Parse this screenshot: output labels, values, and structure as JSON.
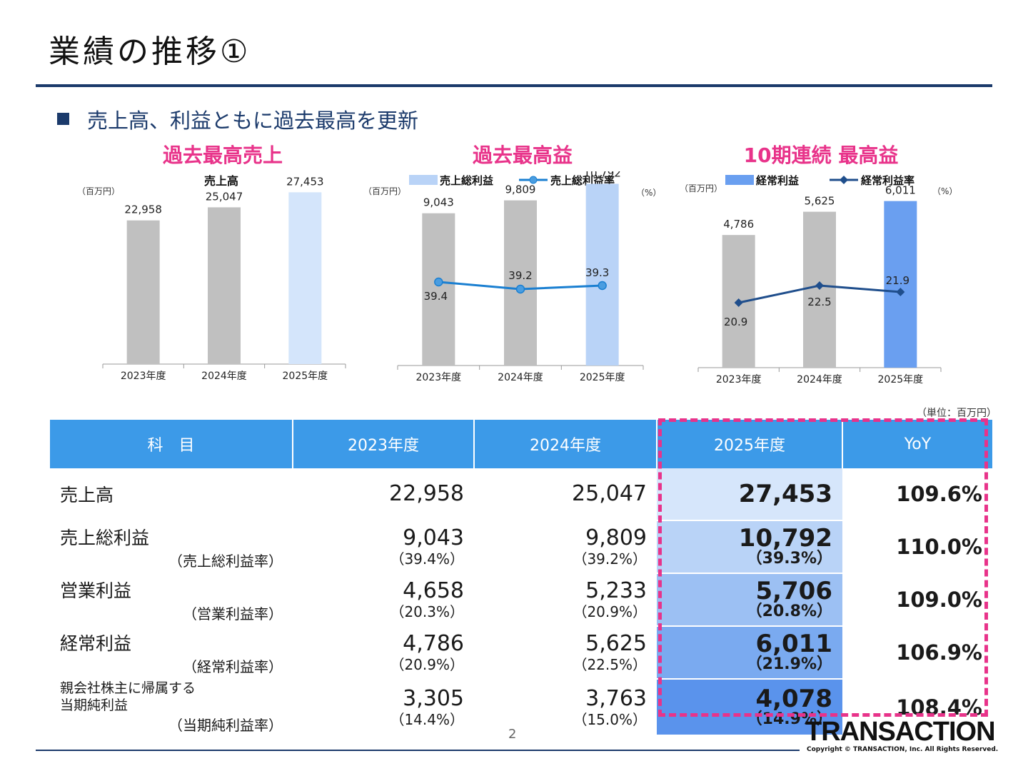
{
  "page": {
    "title": "業績の推移①",
    "subtitle": "売上高、利益ともに過去最高を更新",
    "page_number": "2",
    "logo_text": "TRANSACTION",
    "copyright": "Copyright © TRANSACTION, Inc. All Rights Reserved.",
    "table_unit": "（単位：百万円）"
  },
  "headlines": [
    "過去最高売上",
    "過去最高益",
    "10期連続 最高益"
  ],
  "colors": {
    "navy": "#1b3a6b",
    "pink": "#e8338a",
    "header_blue": "#3c9ae8",
    "gray_bar": "#c0c0c0"
  },
  "chart_data": [
    {
      "type": "bar",
      "title": "売上高",
      "unit_left": "（百万円）",
      "categories": [
        "2023年度",
        "2024年度",
        "2025年度"
      ],
      "series": [
        {
          "values": [
            22958,
            25047,
            27453
          ]
        }
      ],
      "value_labels": [
        "22,958",
        "25,047",
        "27,453"
      ],
      "bar_colors": [
        "#c0c0c0",
        "#c0c0c0",
        "#d4e5fb"
      ],
      "ylim": [
        0,
        30000
      ]
    },
    {
      "type": "bar",
      "unit_left": "（百万円）",
      "unit_right": "（%）",
      "categories": [
        "2023年度",
        "2024年度",
        "2025年度"
      ],
      "series": [
        {
          "name": "売上総利益",
          "values": [
            9043,
            9809,
            10792
          ],
          "labels": [
            "9,043",
            "9,809",
            "10,792"
          ]
        },
        {
          "name": "売上総利益率",
          "type": "line",
          "values": [
            39.4,
            39.2,
            39.3
          ],
          "labels": [
            "39.4",
            "39.2",
            "39.3"
          ]
        }
      ],
      "bar_colors": [
        "#c0c0c0",
        "#c0c0c0",
        "#b9d3f7"
      ],
      "legend_colors": [
        "#b9d3f7",
        "#1a7fd1"
      ],
      "ylim": [
        0,
        12000
      ]
    },
    {
      "type": "bar",
      "unit_left": "（百万円）",
      "unit_right": "（%）",
      "categories": [
        "2023年度",
        "2024年度",
        "2025年度"
      ],
      "series": [
        {
          "name": "経常利益",
          "values": [
            4786,
            5625,
            6011
          ],
          "labels": [
            "4,786",
            "5,625",
            "6,011"
          ]
        },
        {
          "name": "経常利益率",
          "type": "line",
          "values": [
            20.9,
            22.5,
            21.9
          ],
          "labels": [
            "20.9",
            "22.5",
            "21.9"
          ]
        }
      ],
      "bar_colors": [
        "#c0c0c0",
        "#c0c0c0",
        "#6a9ff0"
      ],
      "legend_colors": [
        "#6a9ff0",
        "#1f4e8c"
      ],
      "ylim": [
        0,
        6800
      ]
    }
  ],
  "table": {
    "headers": [
      "科　目",
      "2023年度",
      "2024年度",
      "2025年度",
      "YoY"
    ],
    "rows": [
      {
        "label": "売上高",
        "sub": "",
        "y2023": "22,958",
        "r2023": "",
        "y2024": "25,047",
        "r2024": "",
        "y2025": "27,453",
        "r2025": "",
        "yoy": "109.6%",
        "color": "#d6e6fb"
      },
      {
        "label": "売上総利益",
        "sub": "（売上総利益率）",
        "y2023": "9,043",
        "r2023": "（39.4%）",
        "y2024": "9,809",
        "r2024": "（39.2%）",
        "y2025": "10,792",
        "r2025": "（39.3%）",
        "yoy": "110.0%",
        "color": "#b9d3f7"
      },
      {
        "label": "営業利益",
        "sub": "（営業利益率）",
        "y2023": "4,658",
        "r2023": "（20.3%）",
        "y2024": "5,233",
        "r2024": "（20.9%）",
        "y2025": "5,706",
        "r2025": "（20.8%）",
        "yoy": "109.0%",
        "color": "#9cc0f3"
      },
      {
        "label": "経常利益",
        "sub": "（経常利益率）",
        "y2023": "4,786",
        "r2023": "（20.9%）",
        "y2024": "5,625",
        "r2024": "（22.5%）",
        "y2025": "6,011",
        "r2025": "（21.9%）",
        "yoy": "106.9%",
        "color": "#7aaaf0"
      },
      {
        "label": "親会社株主に帰属する",
        "label2": "当期純利益",
        "sub": "（当期純利益率）",
        "y2023": "3,305",
        "r2023": "（14.4%）",
        "y2024": "3,763",
        "r2024": "（15.0%）",
        "y2025": "4,078",
        "r2025": "（14.9%）",
        "yoy": "108.4%",
        "color": "#5a93ec"
      }
    ]
  }
}
